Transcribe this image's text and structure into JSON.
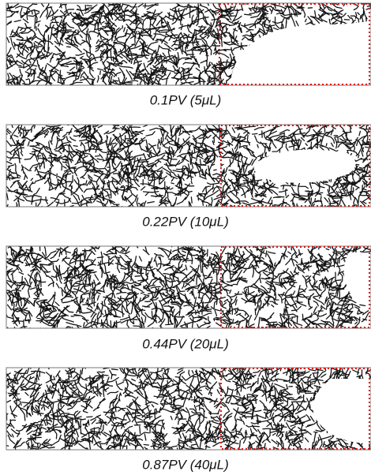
{
  "panels": [
    {
      "caption": "0.1PV (5μL)"
    },
    {
      "caption": "0.22PV (10μL)"
    },
    {
      "caption": "0.44PV (20μL)"
    },
    {
      "caption": "0.87PV (40μL)"
    }
  ]
}
